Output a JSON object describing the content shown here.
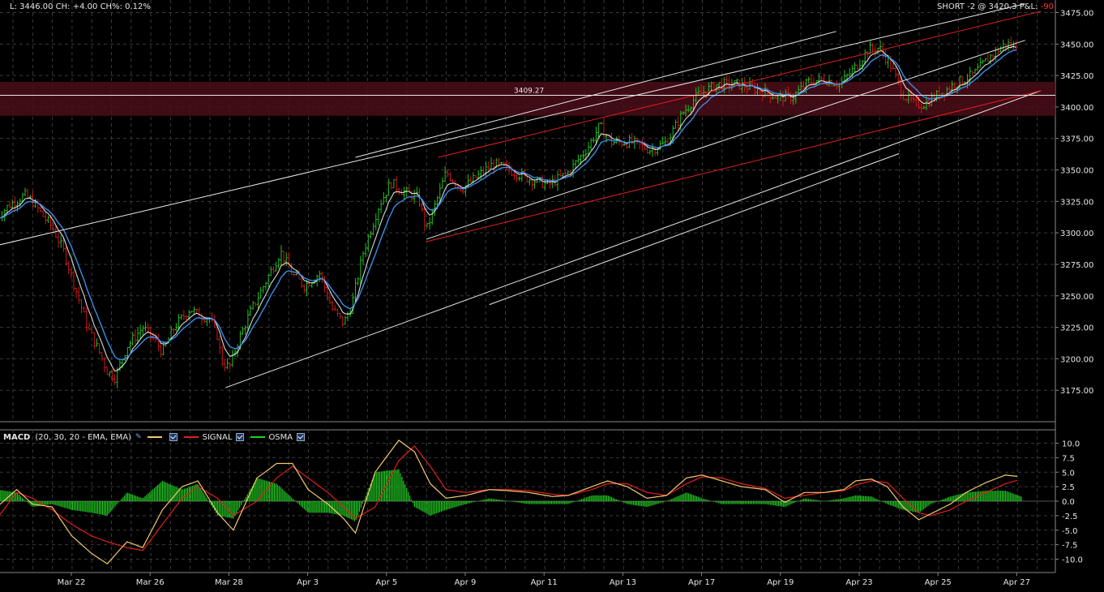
{
  "header": {
    "last": "L: 3446.00",
    "change": "CH: +4.00",
    "change_pct": "CH%: 0.12%",
    "position": "SHORT -2 @ 3420.3 P&L:",
    "pnl": "-90"
  },
  "macd_header": {
    "title": "MACD",
    "params": "(20, 30, 20 - EMA, EMA)",
    "signal_label": "SIGNAL",
    "osma_label": "OSMA",
    "icon": "pencil-tool-icon"
  },
  "colors": {
    "background": "#000000",
    "grid": "#3a3a3a",
    "candle_up": "#22c022",
    "candle_down": "#d01818",
    "ema_fast": "#ffffff",
    "ema_slow": "#3a8ee8",
    "channel_red": "#e02020",
    "trend_white": "#e8e8e8",
    "macd_line": "#f2c86e",
    "signal_line": "#e02020",
    "osma": "#22d022",
    "zone": "#4a0d18",
    "pnl_negative": "#ff3b30"
  },
  "chart_data": [
    {
      "type": "candlestick",
      "title": "",
      "horizontal_line_label": "3409.27",
      "horizontal_line_value": 3409.27,
      "ylim": [
        3150,
        3485
      ],
      "y_ticks": [
        3175,
        3200,
        3225,
        3250,
        3275,
        3300,
        3325,
        3350,
        3375,
        3400,
        3425,
        3450,
        3475
      ],
      "y_tick_labels": [
        "3175.00",
        "3200.00",
        "3225.00",
        "3250.00",
        "3275.00",
        "3300.00",
        "3325.00",
        "3350.00",
        "3375.00",
        "3400.00",
        "3425.00",
        "3450.00",
        "3475.00"
      ],
      "x_labels": [
        "Mar 22",
        "Mar 26",
        "Mar 28",
        "Apr 3",
        "Apr 5",
        "Apr 9",
        "Apr 11",
        "Apr 13",
        "Apr 17",
        "Apr 19",
        "Apr 23",
        "Apr 25",
        "Apr 27"
      ],
      "x_label_positions": [
        1,
        3,
        5,
        7,
        9,
        11,
        13,
        15,
        17,
        19,
        21,
        23,
        25
      ],
      "x_range": [
        0.1,
        26.6
      ],
      "grid": true,
      "resistance_zone": [
        3393,
        3420
      ],
      "price_path": [
        [
          0.1,
          3312
        ],
        [
          0.4,
          3322
        ],
        [
          0.8,
          3330
        ],
        [
          1.0,
          3325
        ],
        [
          1.3,
          3312
        ],
        [
          1.5,
          3305
        ],
        [
          1.8,
          3285
        ],
        [
          2.1,
          3255
        ],
        [
          2.4,
          3225
        ],
        [
          2.7,
          3205
        ],
        [
          2.9,
          3190
        ],
        [
          3.1,
          3185
        ],
        [
          3.4,
          3210
        ],
        [
          3.8,
          3225
        ],
        [
          4.1,
          3215
        ],
        [
          4.3,
          3205
        ],
        [
          4.6,
          3225
        ],
        [
          5.0,
          3240
        ],
        [
          5.2,
          3235
        ],
        [
          5.5,
          3232
        ],
        [
          5.7,
          3218
        ],
        [
          5.8,
          3198
        ],
        [
          6.0,
          3193
        ],
        [
          6.2,
          3212
        ],
        [
          6.5,
          3235
        ],
        [
          6.9,
          3260
        ],
        [
          7.3,
          3285
        ],
        [
          7.6,
          3267
        ],
        [
          7.9,
          3258
        ],
        [
          8.3,
          3268
        ],
        [
          8.6,
          3240
        ],
        [
          8.9,
          3228
        ],
        [
          9.1,
          3242
        ],
        [
          9.4,
          3285
        ],
        [
          9.8,
          3322
        ],
        [
          10.1,
          3340
        ],
        [
          10.4,
          3333
        ],
        [
          10.8,
          3328
        ],
        [
          11.0,
          3302
        ],
        [
          11.2,
          3320
        ],
        [
          11.5,
          3348
        ],
        [
          11.9,
          3335
        ],
        [
          12.3,
          3345
        ],
        [
          12.7,
          3355
        ],
        [
          13.1,
          3350
        ],
        [
          13.6,
          3343
        ],
        [
          14.1,
          3338
        ],
        [
          14.6,
          3348
        ],
        [
          15.1,
          3368
        ],
        [
          15.4,
          3385
        ],
        [
          15.7,
          3372
        ],
        [
          16.2,
          3372
        ],
        [
          16.7,
          3366
        ],
        [
          17.1,
          3372
        ],
        [
          17.5,
          3395
        ],
        [
          17.9,
          3410
        ],
        [
          18.4,
          3418
        ],
        [
          18.9,
          3418
        ],
        [
          19.4,
          3414
        ],
        [
          19.9,
          3408
        ],
        [
          20.3,
          3408
        ],
        [
          20.7,
          3420
        ],
        [
          21.1,
          3422
        ],
        [
          21.5,
          3418
        ],
        [
          21.9,
          3432
        ],
        [
          22.2,
          3445
        ],
        [
          22.5,
          3447
        ],
        [
          22.8,
          3432
        ],
        [
          23.1,
          3410
        ],
        [
          23.4,
          3402
        ],
        [
          23.6,
          3402
        ],
        [
          24.0,
          3410
        ],
        [
          24.4,
          3418
        ],
        [
          24.9,
          3426
        ],
        [
          25.3,
          3440
        ],
        [
          25.7,
          3450
        ],
        [
          26.0,
          3448
        ]
      ],
      "trend_lines": [
        {
          "color": "white",
          "from": [
            0.1,
            3290
          ],
          "to": [
            26.2,
            3482
          ]
        },
        {
          "color": "white",
          "from": [
            9.2,
            3360
          ],
          "to": [
            21.4,
            3460
          ]
        },
        {
          "color": "white",
          "from": [
            5.9,
            3177
          ],
          "to": [
            26.6,
            3413
          ]
        },
        {
          "color": "white",
          "from": [
            12.6,
            3243
          ],
          "to": [
            23.0,
            3363
          ]
        },
        {
          "color": "white",
          "from": [
            11.0,
            3295
          ],
          "to": [
            26.2,
            3453
          ]
        },
        {
          "color": "red",
          "from": [
            11.3,
            3360
          ],
          "to": [
            26.6,
            3476
          ]
        },
        {
          "color": "red",
          "from": [
            11.0,
            3293
          ],
          "to": [
            26.6,
            3413
          ]
        }
      ]
    },
    {
      "type": "line",
      "title": "MACD (20, 30, 20 - EMA, EMA)",
      "ylim": [
        -12,
        12
      ],
      "y_ticks": [
        10,
        7.5,
        5,
        2.5,
        0,
        -2.5,
        -5,
        -7.5,
        -10
      ],
      "y_tick_labels": [
        "10.0",
        "7.5",
        "5.0",
        "2.5",
        "0.0",
        "-2.5",
        "-5.0",
        "-7.5",
        "-10.0"
      ],
      "x_labels": [
        "Mar 22",
        "Mar 26",
        "Mar 28",
        "Apr 3",
        "Apr 5",
        "Apr 9",
        "Apr 11",
        "Apr 13",
        "Apr 17",
        "Apr 19",
        "Apr 23",
        "Apr 25",
        "Apr 27"
      ],
      "series": [
        {
          "name": "MACD",
          "values": [
            [
              0.1,
              -1
            ],
            [
              0.6,
              2
            ],
            [
              1.0,
              -0.5
            ],
            [
              1.5,
              -1
            ],
            [
              2.0,
              -6
            ],
            [
              2.5,
              -9
            ],
            [
              2.9,
              -10.8
            ],
            [
              3.4,
              -7
            ],
            [
              3.8,
              -8
            ],
            [
              4.3,
              -1.5
            ],
            [
              4.8,
              2.5
            ],
            [
              5.2,
              3.5
            ],
            [
              5.7,
              -2
            ],
            [
              6.1,
              -5
            ],
            [
              6.7,
              4
            ],
            [
              7.2,
              6.5
            ],
            [
              7.6,
              6.5
            ],
            [
              8.0,
              2
            ],
            [
              8.5,
              -0.5
            ],
            [
              8.9,
              -3
            ],
            [
              9.2,
              -5.5
            ],
            [
              9.7,
              5
            ],
            [
              10.3,
              10.5
            ],
            [
              10.7,
              8.5
            ],
            [
              11.1,
              3
            ],
            [
              11.5,
              0.5
            ],
            [
              12.0,
              1
            ],
            [
              12.6,
              2
            ],
            [
              13.1,
              1.8
            ],
            [
              13.6,
              1.5
            ],
            [
              14.2,
              0.8
            ],
            [
              14.6,
              1
            ],
            [
              15.2,
              2.5
            ],
            [
              15.6,
              3.5
            ],
            [
              16.1,
              2.5
            ],
            [
              16.6,
              0.5
            ],
            [
              17.1,
              1
            ],
            [
              17.6,
              4
            ],
            [
              18.0,
              4.5
            ],
            [
              18.5,
              3.5
            ],
            [
              19.0,
              2.5
            ],
            [
              19.6,
              2
            ],
            [
              20.1,
              -0.2
            ],
            [
              20.6,
              1.5
            ],
            [
              21.1,
              1.5
            ],
            [
              21.6,
              2
            ],
            [
              21.9,
              3.5
            ],
            [
              22.3,
              3.8
            ],
            [
              22.7,
              2.5
            ],
            [
              23.1,
              -1
            ],
            [
              23.5,
              -3.2
            ],
            [
              23.8,
              -2.2
            ],
            [
              24.3,
              -0.5
            ],
            [
              24.7,
              1.5
            ],
            [
              25.2,
              3.2
            ],
            [
              25.7,
              4.5
            ],
            [
              26.1,
              4.2
            ]
          ]
        },
        {
          "name": "SIGNAL",
          "values": [
            [
              0.1,
              -3
            ],
            [
              0.6,
              1.5
            ],
            [
              1.0,
              0.5
            ],
            [
              1.5,
              -1.5
            ],
            [
              2.0,
              -4
            ],
            [
              2.5,
              -6
            ],
            [
              2.9,
              -7
            ],
            [
              3.4,
              -8
            ],
            [
              3.8,
              -8.5
            ],
            [
              4.3,
              -4
            ],
            [
              4.8,
              0.5
            ],
            [
              5.2,
              2.5
            ],
            [
              5.7,
              0.5
            ],
            [
              6.1,
              -2.5
            ],
            [
              6.7,
              0
            ],
            [
              7.2,
              4
            ],
            [
              7.6,
              6
            ],
            [
              8.0,
              4
            ],
            [
              8.5,
              1.5
            ],
            [
              8.9,
              -1
            ],
            [
              9.2,
              -3
            ],
            [
              9.7,
              -1
            ],
            [
              10.3,
              7
            ],
            [
              10.7,
              9.5
            ],
            [
              11.1,
              6
            ],
            [
              11.5,
              2
            ],
            [
              12.0,
              1.5
            ],
            [
              12.6,
              2
            ],
            [
              13.1,
              2
            ],
            [
              13.6,
              1.8
            ],
            [
              14.2,
              1.2
            ],
            [
              14.6,
              1
            ],
            [
              15.2,
              2
            ],
            [
              15.6,
              3
            ],
            [
              16.1,
              3
            ],
            [
              16.6,
              1.5
            ],
            [
              17.1,
              1
            ],
            [
              17.6,
              3
            ],
            [
              18.0,
              4.2
            ],
            [
              18.5,
              4
            ],
            [
              19.0,
              3
            ],
            [
              19.6,
              2.2
            ],
            [
              20.1,
              0.5
            ],
            [
              20.6,
              1
            ],
            [
              21.1,
              1.5
            ],
            [
              21.6,
              1.8
            ],
            [
              21.9,
              2.8
            ],
            [
              22.3,
              3.5
            ],
            [
              22.7,
              3.2
            ],
            [
              23.1,
              0.5
            ],
            [
              23.5,
              -2
            ],
            [
              23.8,
              -2.5
            ],
            [
              24.3,
              -1.5
            ],
            [
              24.7,
              0
            ],
            [
              25.2,
              1.5
            ],
            [
              25.7,
              3
            ],
            [
              26.1,
              3.8
            ]
          ]
        },
        {
          "name": "OSMA",
          "values": [
            [
              0.1,
              2
            ],
            [
              0.6,
              1.5
            ],
            [
              1.0,
              -1
            ],
            [
              1.5,
              -0.5
            ],
            [
              2.0,
              -1.5
            ],
            [
              2.5,
              -2
            ],
            [
              2.9,
              -2.5
            ],
            [
              3.4,
              1.5
            ],
            [
              3.8,
              0.5
            ],
            [
              4.3,
              3.5
            ],
            [
              4.8,
              2
            ],
            [
              5.2,
              3
            ],
            [
              5.7,
              -2.5
            ],
            [
              6.1,
              -3
            ],
            [
              6.7,
              4
            ],
            [
              7.2,
              3
            ],
            [
              7.6,
              0.5
            ],
            [
              8.0,
              -2
            ],
            [
              8.5,
              -2
            ],
            [
              8.9,
              -2.5
            ],
            [
              9.2,
              -3.5
            ],
            [
              9.7,
              5
            ],
            [
              10.3,
              5.5
            ],
            [
              10.7,
              -1
            ],
            [
              11.1,
              -2.5
            ],
            [
              11.5,
              -1.5
            ],
            [
              12.0,
              -0.5
            ],
            [
              12.6,
              0.5
            ],
            [
              13.1,
              0
            ],
            [
              13.6,
              -0.5
            ],
            [
              14.2,
              -0.5
            ],
            [
              14.6,
              -0.5
            ],
            [
              15.2,
              1
            ],
            [
              15.6,
              1
            ],
            [
              16.1,
              -0.5
            ],
            [
              16.6,
              -1
            ],
            [
              17.1,
              0
            ],
            [
              17.6,
              1.5
            ],
            [
              18.0,
              0.5
            ],
            [
              18.5,
              -0.5
            ],
            [
              19.0,
              -0.5
            ],
            [
              19.6,
              -0.5
            ],
            [
              20.1,
              -1
            ],
            [
              20.6,
              0.5
            ],
            [
              21.1,
              0
            ],
            [
              21.6,
              0.5
            ],
            [
              21.9,
              1
            ],
            [
              22.3,
              0.8
            ],
            [
              22.7,
              -0.5
            ],
            [
              23.1,
              -1.5
            ],
            [
              23.5,
              -2
            ],
            [
              23.8,
              -0.5
            ],
            [
              24.3,
              0.8
            ],
            [
              24.7,
              1.5
            ],
            [
              25.2,
              1.8
            ],
            [
              25.7,
              1.8
            ],
            [
              26.1,
              0.8
            ]
          ]
        }
      ]
    }
  ]
}
